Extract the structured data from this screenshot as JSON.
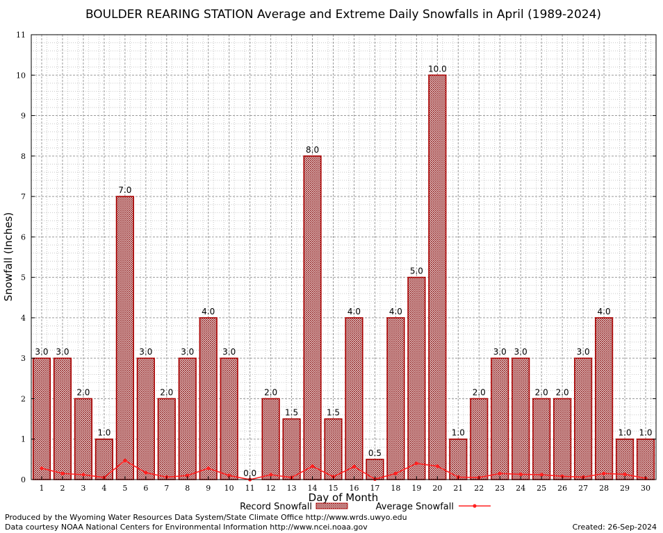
{
  "chart_data": {
    "type": "bar",
    "title": "BOULDER REARING STATION Average and Extreme Daily Snowfalls in April (1989-2024)",
    "xlabel": "Day of Month",
    "ylabel": "Snowfall (Inches)",
    "ylim": [
      0,
      11
    ],
    "yticks": [
      0,
      1,
      2,
      3,
      4,
      5,
      6,
      7,
      8,
      9,
      10,
      11
    ],
    "grid": true,
    "categories": [
      "1",
      "2",
      "3",
      "4",
      "5",
      "6",
      "7",
      "8",
      "9",
      "10",
      "11",
      "12",
      "13",
      "14",
      "15",
      "16",
      "17",
      "18",
      "19",
      "20",
      "21",
      "22",
      "23",
      "24",
      "25",
      "26",
      "27",
      "28",
      "29",
      "30"
    ],
    "series": [
      {
        "name": "Record Snowfall",
        "type": "bar",
        "color": "#aa0000",
        "values": [
          3.0,
          3.0,
          2.0,
          1.0,
          7.0,
          3.0,
          2.0,
          3.0,
          4.0,
          3.0,
          0.0,
          2.0,
          1.5,
          8.0,
          1.5,
          4.0,
          0.5,
          4.0,
          5.0,
          10.0,
          1.0,
          2.0,
          3.0,
          3.0,
          2.0,
          2.0,
          3.0,
          4.0,
          1.0,
          1.0
        ],
        "labels": [
          "3.0",
          "3.0",
          "2.0",
          "1.0",
          "7.0",
          "3.0",
          "2.0",
          "3.0",
          "4.0",
          "3.0",
          "0.0",
          "2.0",
          "1.5",
          "8.0",
          "1.5",
          "4.0",
          "0.5",
          "4.0",
          "5.0",
          "10.0",
          "1.0",
          "2.0",
          "3.0",
          "3.0",
          "2.0",
          "2.0",
          "3.0",
          "4.0",
          "1.0",
          "1.0"
        ]
      },
      {
        "name": "Average Snowfall",
        "type": "line",
        "color": "#ff2020",
        "values": [
          0.28,
          0.15,
          0.12,
          0.05,
          0.47,
          0.17,
          0.06,
          0.1,
          0.28,
          0.1,
          0.0,
          0.12,
          0.05,
          0.33,
          0.07,
          0.32,
          0.01,
          0.15,
          0.4,
          0.33,
          0.06,
          0.05,
          0.15,
          0.13,
          0.12,
          0.08,
          0.06,
          0.15,
          0.13,
          0.03
        ]
      }
    ],
    "legend_position": "bottom-center"
  },
  "footer": {
    "produced_by": "Produced by the Wyoming Water Resources Data System/State Climate Office http://www.wrds.uwyo.edu",
    "courtesy": "Data courtesy NOAA National Centers for Environmental Information http://www.ncei.noaa.gov",
    "created": "Created:  26-Sep-2024"
  }
}
